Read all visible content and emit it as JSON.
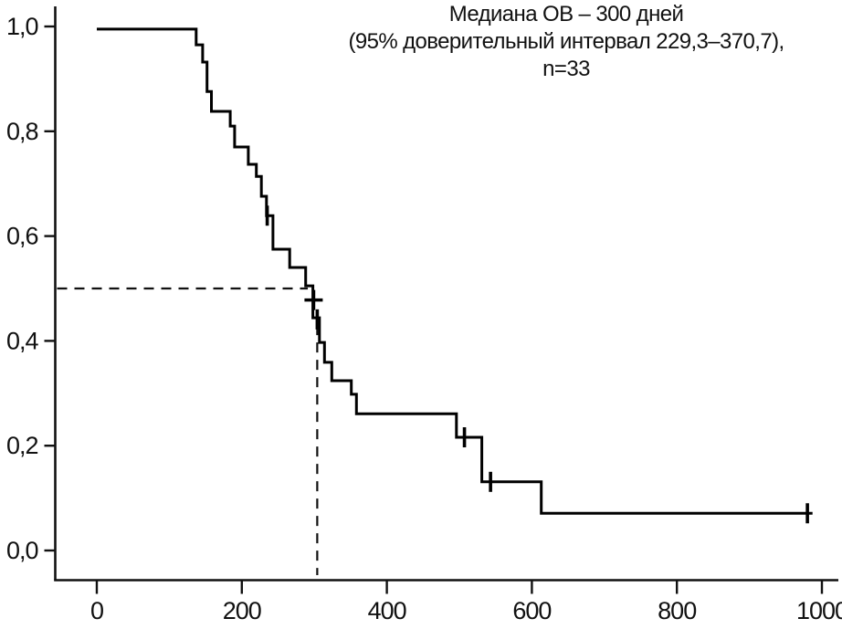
{
  "title": {
    "line1": "Медиана ОВ – 300 дней",
    "line2": "(95% доверительный интервал 229,3–370,7),",
    "line3": "n=33"
  },
  "chart_data": {
    "type": "line",
    "subtype": "kaplan-meier-step-curve",
    "title": "Медиана ОВ – 300 дней (95% доверительный интервал 229,3–370,7), n=33",
    "n": 33,
    "median_days": 300,
    "ci95_low": "229,3",
    "ci95_high": "370,7",
    "xlabel": "",
    "ylabel": "",
    "xlim": [
      0,
      1000
    ],
    "ylim": [
      0.0,
      1.0
    ],
    "grid": false,
    "legend": "none",
    "x_ticks": [
      {
        "value": 0,
        "label": "0"
      },
      {
        "value": 200,
        "label": "200"
      },
      {
        "value": 400,
        "label": "400"
      },
      {
        "value": 600,
        "label": "600"
      },
      {
        "value": 800,
        "label": "800"
      },
      {
        "value": 1000,
        "label": "1000"
      }
    ],
    "y_ticks": [
      {
        "value": 1.0,
        "label": "1,0"
      },
      {
        "value": 0.8,
        "label": "0,8"
      },
      {
        "value": 0.6,
        "label": "0,6"
      },
      {
        "value": 0.4,
        "label": "0,4"
      },
      {
        "value": 0.2,
        "label": "0,2"
      },
      {
        "value": 0.0,
        "label": "0,0"
      }
    ],
    "steps": [
      [
        0,
        0.995
      ],
      [
        137,
        0.965
      ],
      [
        146,
        0.932
      ],
      [
        152,
        0.876
      ],
      [
        158,
        0.838
      ],
      [
        184,
        0.81
      ],
      [
        190,
        0.77
      ],
      [
        209,
        0.737
      ],
      [
        220,
        0.714
      ],
      [
        227,
        0.676
      ],
      [
        234,
        0.639
      ],
      [
        243,
        0.575
      ],
      [
        266,
        0.54
      ],
      [
        288,
        0.505
      ],
      [
        298,
        0.444
      ],
      [
        307,
        0.397
      ],
      [
        314,
        0.359
      ],
      [
        324,
        0.324
      ],
      [
        351,
        0.298
      ],
      [
        358,
        0.261
      ],
      [
        496,
        0.216
      ],
      [
        531,
        0.131
      ],
      [
        613,
        0.071
      ]
    ],
    "end_t": 987,
    "censor_marks": [
      {
        "t": 235,
        "s": 0.639,
        "style": "bar"
      },
      {
        "t": 299,
        "s": 0.478,
        "style": "plus"
      },
      {
        "t": 304,
        "s": 0.441,
        "style": "bar"
      },
      {
        "t": 507,
        "s": 0.216,
        "style": "bar"
      },
      {
        "t": 543,
        "s": 0.131,
        "style": "bar"
      },
      {
        "t": 980,
        "s": 0.071,
        "style": "bar"
      }
    ],
    "median_guides": {
      "horizontal": {
        "s": 0.5,
        "t_end": 291
      },
      "vertical": {
        "t": 304,
        "s_top": 0.43
      }
    },
    "line_color": "#000000",
    "guide_color": "#111111",
    "background": "#ffffff"
  }
}
